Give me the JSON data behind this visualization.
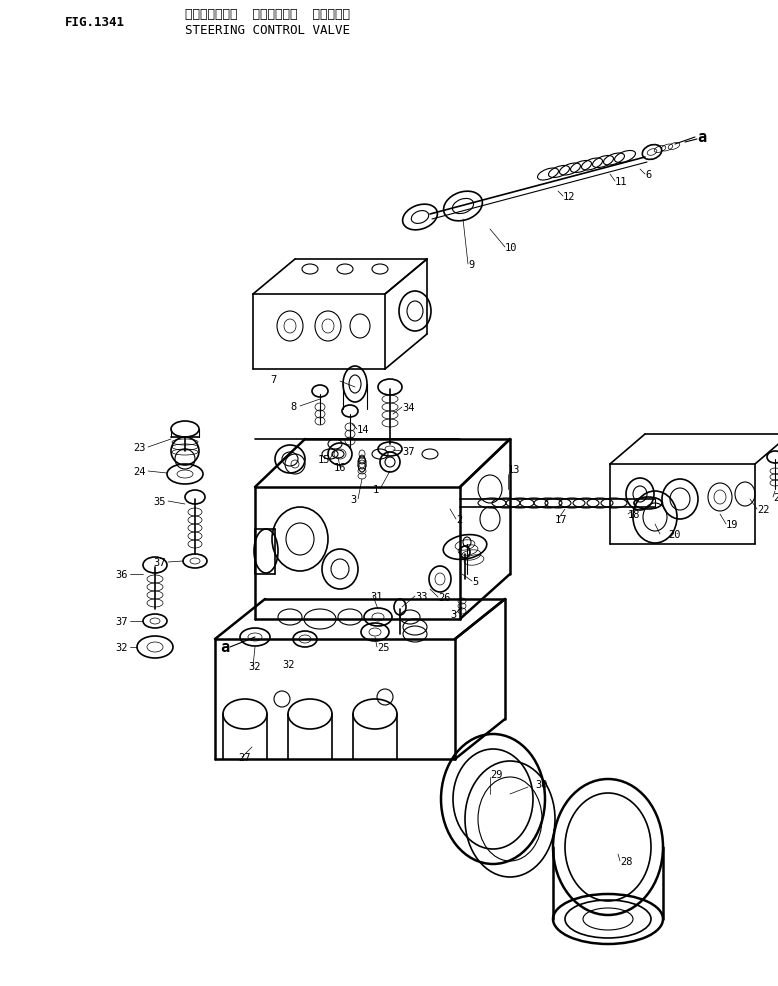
{
  "title_japanese": "ステアリング゜  コントロール  ハ゜ルフ゜",
  "title_english": "STEERING CONTROL VALVE",
  "fig_label": "FIG.1341",
  "bg_color": "#ffffff",
  "text_color": "#000000",
  "figsize": [
    7.78,
    9.87
  ],
  "dpi": 100
}
